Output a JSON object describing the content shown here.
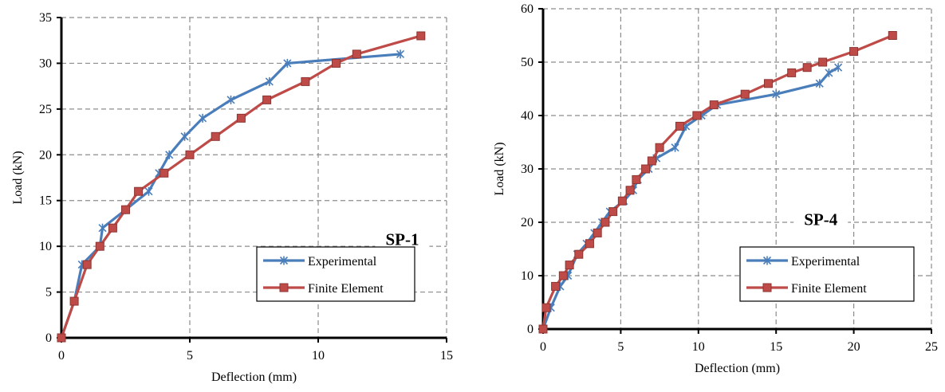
{
  "chart_data": [
    {
      "type": "line",
      "annotation": "SP-1",
      "xlabel": "Deflection (mm)",
      "ylabel": "Load (kN)",
      "xlim": [
        0,
        15
      ],
      "ylim": [
        0,
        35
      ],
      "xticks": [
        0,
        5,
        10,
        15
      ],
      "yticks": [
        0,
        5,
        10,
        15,
        20,
        25,
        30,
        35
      ],
      "grid": true,
      "legend_position": "bottom-right",
      "series": [
        {
          "name": "Experimental",
          "color": "#4a7ebb",
          "marker": "asterisk",
          "points": [
            [
              0,
              0
            ],
            [
              0.5,
              4
            ],
            [
              0.8,
              8
            ],
            [
              1.5,
              10
            ],
            [
              1.6,
              12
            ],
            [
              2.5,
              14
            ],
            [
              3.4,
              16
            ],
            [
              3.8,
              18
            ],
            [
              4.2,
              20
            ],
            [
              4.8,
              22
            ],
            [
              5.5,
              24
            ],
            [
              6.6,
              26
            ],
            [
              8.1,
              28
            ],
            [
              8.8,
              30
            ],
            [
              13.2,
              31
            ]
          ]
        },
        {
          "name": "Finite Element",
          "color": "#be4b48",
          "marker": "square",
          "points": [
            [
              0,
              0
            ],
            [
              0.5,
              4
            ],
            [
              1,
              8
            ],
            [
              1.5,
              10
            ],
            [
              2,
              12
            ],
            [
              2.5,
              14
            ],
            [
              3,
              16
            ],
            [
              4,
              18
            ],
            [
              5,
              20
            ],
            [
              6,
              22
            ],
            [
              7,
              24
            ],
            [
              8,
              26
            ],
            [
              9.5,
              28
            ],
            [
              10.7,
              30
            ],
            [
              11.5,
              31
            ],
            [
              14,
              33
            ]
          ]
        }
      ]
    },
    {
      "type": "line",
      "annotation": "SP-4",
      "xlabel": "Deflection (mm)",
      "ylabel": "Load (kN)",
      "xlim": [
        0,
        25
      ],
      "ylim": [
        0,
        60
      ],
      "xticks": [
        0,
        5,
        10,
        15,
        20,
        25
      ],
      "yticks": [
        0,
        10,
        20,
        30,
        40,
        50,
        60
      ],
      "grid": true,
      "legend_position": "bottom-right",
      "series": [
        {
          "name": "Experimental",
          "color": "#4a7ebb",
          "marker": "asterisk",
          "points": [
            [
              0,
              0
            ],
            [
              0.5,
              4
            ],
            [
              1.1,
              8
            ],
            [
              1.6,
              10
            ],
            [
              2.2,
              14
            ],
            [
              2.8,
              16
            ],
            [
              3.3,
              18
            ],
            [
              3.8,
              20
            ],
            [
              4.3,
              22
            ],
            [
              5.2,
              24
            ],
            [
              5.8,
              26
            ],
            [
              6.1,
              28
            ],
            [
              6.8,
              30
            ],
            [
              7.3,
              32
            ],
            [
              8.5,
              34
            ],
            [
              9.2,
              38
            ],
            [
              10.2,
              40
            ],
            [
              11.2,
              42
            ],
            [
              15,
              44
            ],
            [
              17.8,
              46
            ],
            [
              18.4,
              48
            ],
            [
              19,
              49
            ]
          ]
        },
        {
          "name": "Finite Element",
          "color": "#be4b48",
          "marker": "square",
          "points": [
            [
              0,
              0
            ],
            [
              0.2,
              4
            ],
            [
              0.8,
              8
            ],
            [
              1.3,
              10
            ],
            [
              1.7,
              12
            ],
            [
              2.3,
              14
            ],
            [
              3,
              16
            ],
            [
              3.5,
              18
            ],
            [
              4,
              20
            ],
            [
              4.5,
              22
            ],
            [
              5.1,
              24
            ],
            [
              5.6,
              26
            ],
            [
              6,
              28
            ],
            [
              6.6,
              30
            ],
            [
              7,
              31.5
            ],
            [
              7.5,
              34
            ],
            [
              8.8,
              38
            ],
            [
              9.9,
              40
            ],
            [
              11,
              42
            ],
            [
              13,
              44
            ],
            [
              14.5,
              46
            ],
            [
              16,
              48
            ],
            [
              17,
              49
            ],
            [
              18,
              50
            ],
            [
              20,
              52
            ],
            [
              22.5,
              55
            ]
          ]
        }
      ]
    }
  ]
}
